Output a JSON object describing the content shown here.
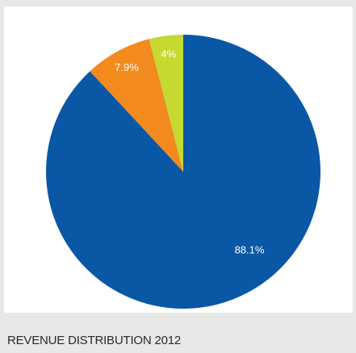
{
  "chart_data": {
    "type": "pie",
    "title": "REVENUE DISTRIBUTION 2012",
    "slices": [
      {
        "label": "88.1%",
        "value": 88.1,
        "color": "#0a57a6"
      },
      {
        "label": "7.9%",
        "value": 7.9,
        "color": "#f28a1e"
      },
      {
        "label": "4%",
        "value": 4.0,
        "color": "#c5d930"
      }
    ],
    "start_angle": "12 o'clock",
    "direction": "clockwise"
  }
}
